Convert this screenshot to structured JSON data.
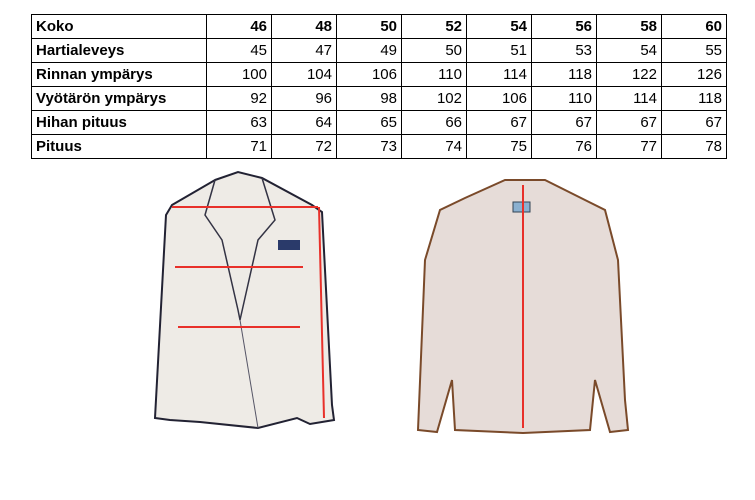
{
  "size_table": {
    "header": {
      "label": "Koko",
      "sizes": [
        "46",
        "48",
        "50",
        "52",
        "54",
        "56",
        "58",
        "60"
      ]
    },
    "rows": [
      {
        "label": "Hartialeveys",
        "values": [
          "45",
          "47",
          "49",
          "50",
          "51",
          "53",
          "54",
          "55"
        ]
      },
      {
        "label": "Rinnan ympärys",
        "values": [
          "100",
          "104",
          "106",
          "110",
          "114",
          "118",
          "122",
          "126"
        ]
      },
      {
        "label": "Vyötärön ympärys",
        "values": [
          "92",
          "96",
          "98",
          "102",
          "106",
          "110",
          "114",
          "118"
        ]
      },
      {
        "label": "Hihan pituus",
        "values": [
          "63",
          "64",
          "65",
          "66",
          "67",
          "67",
          "67",
          "67"
        ]
      },
      {
        "label": "Pituus",
        "values": [
          "71",
          "72",
          "73",
          "74",
          "75",
          "76",
          "77",
          "78"
        ]
      }
    ]
  },
  "colors": {
    "measure_line": "#e8302a",
    "jacket_fill": "#eeebe6",
    "back_fill": "#e6dcd8"
  }
}
